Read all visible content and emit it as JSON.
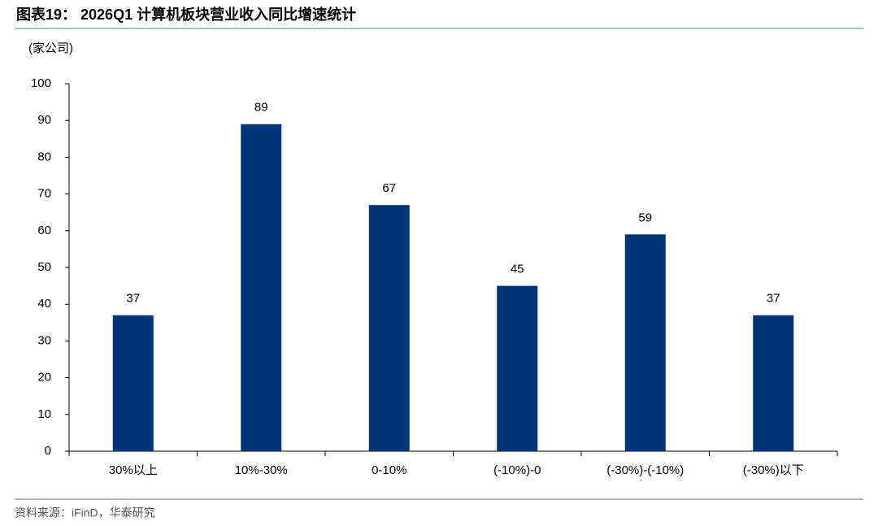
{
  "chart_data": {
    "type": "bar",
    "title": "图表19： 2026Q1 计算机板块营业收入同比增速统计",
    "y_label": "(家公司)",
    "source": "资料来源：iFinD，华泰研究",
    "categories": [
      "30%以上",
      "10%-30%",
      "0-10%",
      "(-10%)-0",
      "(-30%)-(-10%)",
      "(-30%)以下"
    ],
    "values": [
      37,
      89,
      67,
      45,
      59,
      37
    ],
    "color": "#003478",
    "ylim": [
      0,
      100
    ],
    "yticks": [
      0,
      10,
      20,
      30,
      40,
      50,
      60,
      70,
      80,
      90,
      100
    ],
    "grid": false
  }
}
